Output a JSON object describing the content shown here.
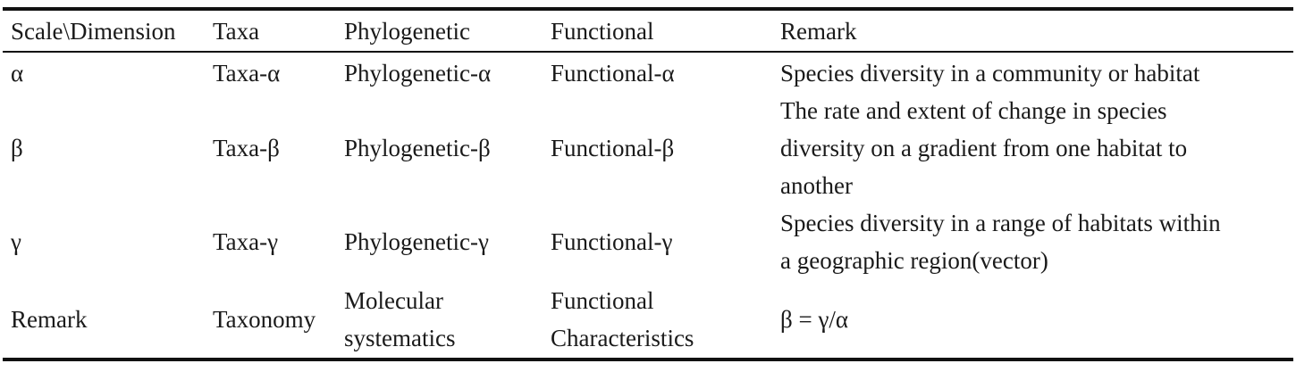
{
  "table": {
    "headers": [
      "Scale\\Dimension",
      "Taxa",
      "Phylogenetic",
      "Functional",
      "Remark"
    ],
    "rows": [
      {
        "scale": "α",
        "taxa": "Taxa-α",
        "phylogenetic": "Phylogenetic-α",
        "functional": "Functional-α",
        "remark": [
          "Species diversity in a community or habitat"
        ]
      },
      {
        "scale": "β",
        "taxa": "Taxa-β",
        "phylogenetic": "Phylogenetic-β",
        "functional": "Functional-β",
        "remark": [
          "The rate and extent of change in species",
          "diversity on a gradient from one habitat to",
          "another"
        ]
      },
      {
        "scale": "γ",
        "taxa": "Taxa-γ",
        "phylogenetic": "Phylogenetic-γ",
        "functional": "Functional-γ",
        "remark": [
          "Species diversity in a range of habitats within",
          "a geographic region(vector)"
        ]
      },
      {
        "scale": "Remark",
        "taxa": "Taxonomy",
        "phylogenetic": [
          "Molecular",
          "systematics"
        ],
        "functional": [
          "Functional",
          "Characteristics"
        ],
        "remark": [
          "β = γ/α"
        ]
      }
    ]
  }
}
